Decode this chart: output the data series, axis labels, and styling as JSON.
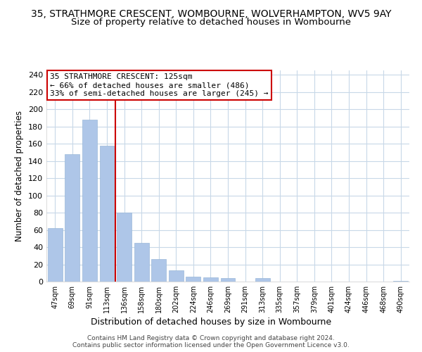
{
  "title": "35, STRATHMORE CRESCENT, WOMBOURNE, WOLVERHAMPTON, WV5 9AY",
  "subtitle": "Size of property relative to detached houses in Wombourne",
  "xlabel": "Distribution of detached houses by size in Wombourne",
  "ylabel": "Number of detached properties",
  "bar_labels": [
    "47sqm",
    "69sqm",
    "91sqm",
    "113sqm",
    "136sqm",
    "158sqm",
    "180sqm",
    "202sqm",
    "224sqm",
    "246sqm",
    "269sqm",
    "291sqm",
    "313sqm",
    "335sqm",
    "357sqm",
    "379sqm",
    "401sqm",
    "424sqm",
    "446sqm",
    "468sqm",
    "490sqm"
  ],
  "bar_values": [
    62,
    148,
    188,
    158,
    80,
    45,
    26,
    13,
    6,
    5,
    4,
    0,
    4,
    0,
    0,
    0,
    0,
    0,
    0,
    0,
    1
  ],
  "bar_color": "#aec6e8",
  "bar_edge_color": "#9ab8d8",
  "vline_x": 3.5,
  "vline_color": "#cc0000",
  "ylim_max": 245,
  "yticks": [
    0,
    20,
    40,
    60,
    80,
    100,
    120,
    140,
    160,
    180,
    200,
    220,
    240
  ],
  "annotation_title": "35 STRATHMORE CRESCENT: 125sqm",
  "annotation_line1": "← 66% of detached houses are smaller (486)",
  "annotation_line2": "33% of semi-detached houses are larger (245) →",
  "annotation_box_color": "#ffffff",
  "annotation_box_edge": "#cc0000",
  "footnote1": "Contains HM Land Registry data © Crown copyright and database right 2024.",
  "footnote2": "Contains public sector information licensed under the Open Government Licence v3.0.",
  "background_color": "#ffffff",
  "grid_color": "#c8d8e8",
  "title_fontsize": 10,
  "subtitle_fontsize": 9.5
}
